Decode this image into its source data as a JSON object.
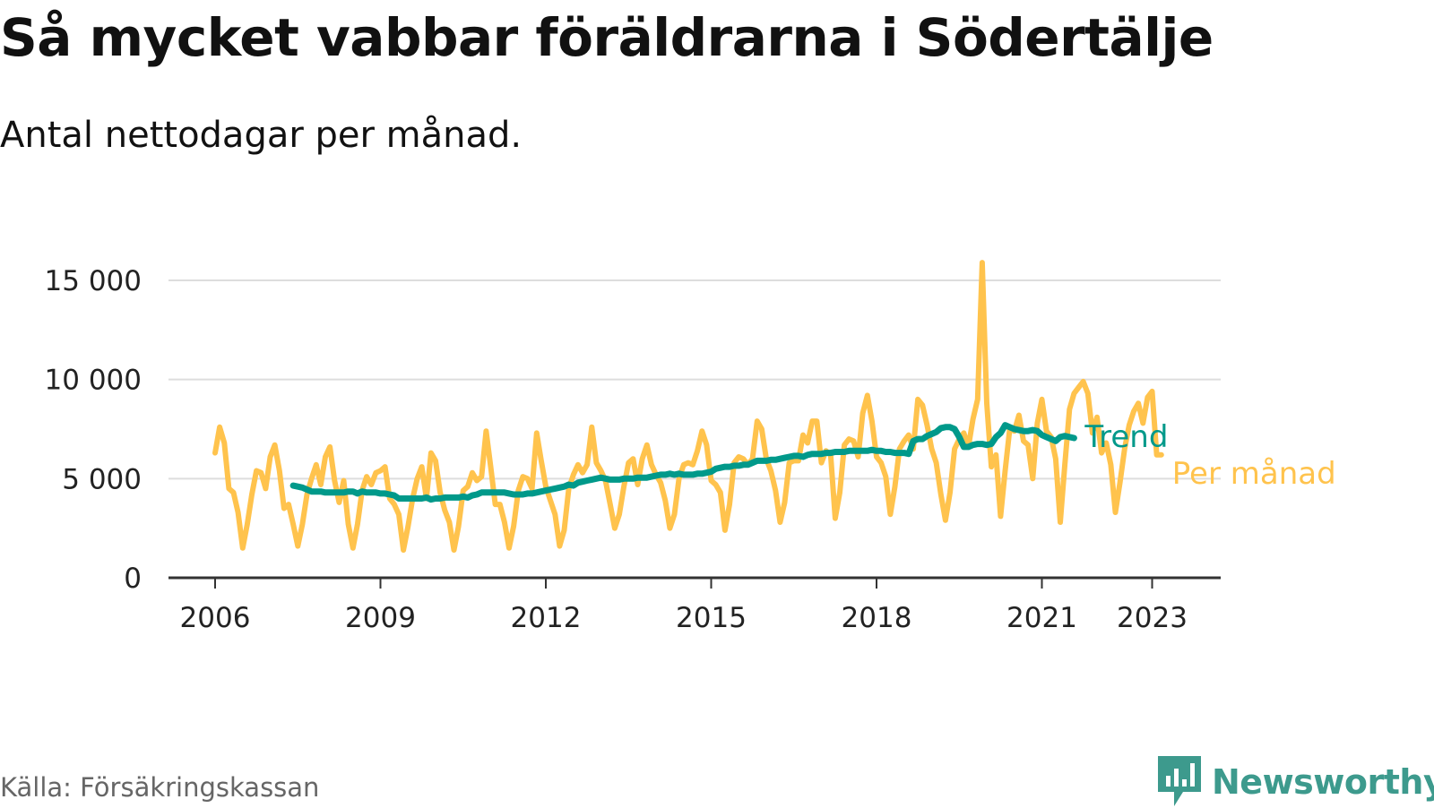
{
  "header": {
    "title": "Så mycket vabbar föräldrarna i Södertälje",
    "subtitle": "Antal nettodagar per månad."
  },
  "footer": {
    "source": "Källa: Försäkringskassan",
    "brand": "Newsworthy",
    "brand_icon": "bar-chart-chat-icon"
  },
  "colors": {
    "monthly": "#ffc34d",
    "trend": "#00998a",
    "grid": "#dddddd",
    "axis": "#333333",
    "brand": "#3d9a8d"
  },
  "chart_data": {
    "type": "line",
    "x_axis": {
      "ticks": [
        "2006",
        "2009",
        "2012",
        "2015",
        "2018",
        "2021",
        "2023"
      ],
      "range": [
        "2006-01",
        "2024-12"
      ]
    },
    "y_axis": {
      "ticks": [
        "0",
        "5 000",
        "10 000",
        "15 000"
      ],
      "range": [
        0,
        15000
      ]
    },
    "grid": true,
    "series": [
      {
        "name": "Per månad",
        "start": "2006-01",
        "frequency": "monthly",
        "values": [
          6300,
          7600,
          6800,
          4500,
          4300,
          3300,
          1500,
          2700,
          4200,
          5400,
          5300,
          4500,
          6100,
          6700,
          5400,
          3500,
          3700,
          2700,
          1600,
          2700,
          4200,
          5000,
          5700,
          4700,
          6100,
          6600,
          4900,
          3800,
          4900,
          2700,
          1500,
          2700,
          4400,
          5100,
          4700,
          5300,
          5400,
          5600,
          4000,
          3700,
          3200,
          1400,
          2600,
          4000,
          5000,
          5600,
          4000,
          6300,
          5900,
          4300,
          3400,
          2800,
          1400,
          2600,
          4400,
          4600,
          5300,
          4900,
          5100,
          7400,
          5600,
          3700,
          3700,
          2800,
          1500,
          2600,
          4400,
          5100,
          5000,
          4500,
          7300,
          5900,
          4600,
          3900,
          3200,
          1600,
          2400,
          4500,
          5200,
          5700,
          5300,
          5700,
          7600,
          5800,
          5400,
          4900,
          3700,
          2500,
          3200,
          4600,
          5800,
          6000,
          4700,
          6000,
          6700,
          5700,
          5200,
          4800,
          3900,
          2500,
          3200,
          5000,
          5700,
          5800,
          5700,
          6400,
          7400,
          6700,
          4900,
          4700,
          4300,
          2400,
          3700,
          5800,
          6100,
          6000,
          5700,
          6000,
          7900,
          7500,
          6000,
          5400,
          4400,
          2800,
          3800,
          5800,
          5900,
          5900,
          7200,
          6800,
          7900,
          7900,
          5800,
          6400,
          6200,
          3000,
          4300,
          6700,
          7000,
          6900,
          6100,
          8300,
          9200,
          7900,
          6100,
          5800,
          5100,
          3200,
          4600,
          6500,
          6900,
          7200,
          6500,
          9000,
          8700,
          7700,
          6500,
          5800,
          4200,
          2900,
          4300,
          6500,
          7000,
          7300,
          6600,
          8000,
          9000,
          15900,
          8800,
          5600,
          6200,
          3100,
          5400,
          7500,
          7400,
          8200,
          6900,
          6700,
          5000,
          7800,
          9000,
          7400,
          7100,
          6000,
          2800,
          5700,
          8500,
          9300,
          9600,
          9900,
          9300,
          7300,
          8100,
          6300,
          6800,
          5700,
          3300,
          4800,
          6500,
          7700,
          8400,
          8800,
          7800,
          9100,
          9400,
          6200,
          6200
        ]
      },
      {
        "name": "Trend",
        "start": "2007-06",
        "frequency": "monthly",
        "values": [
          4650,
          4600,
          4550,
          4450,
          4350,
          4350,
          4350,
          4300,
          4300,
          4300,
          4300,
          4300,
          4350,
          4350,
          4250,
          4350,
          4300,
          4300,
          4300,
          4250,
          4250,
          4200,
          4150,
          4000,
          4000,
          4000,
          4000,
          4000,
          4000,
          4050,
          3950,
          4000,
          4000,
          4050,
          4050,
          4050,
          4050,
          4100,
          4050,
          4150,
          4200,
          4300,
          4300,
          4300,
          4300,
          4300,
          4300,
          4250,
          4200,
          4200,
          4200,
          4250,
          4250,
          4300,
          4350,
          4400,
          4450,
          4500,
          4550,
          4600,
          4700,
          4650,
          4800,
          4850,
          4900,
          4950,
          5000,
          5050,
          5000,
          4950,
          4950,
          4950,
          5000,
          5000,
          5000,
          5050,
          5050,
          5050,
          5100,
          5150,
          5200,
          5200,
          5250,
          5200,
          5250,
          5200,
          5200,
          5200,
          5250,
          5250,
          5300,
          5350,
          5500,
          5550,
          5600,
          5600,
          5650,
          5650,
          5700,
          5700,
          5800,
          5900,
          5900,
          5900,
          5950,
          5950,
          6000,
          6050,
          6100,
          6150,
          6150,
          6100,
          6200,
          6250,
          6250,
          6250,
          6300,
          6300,
          6350,
          6350,
          6350,
          6400,
          6400,
          6400,
          6400,
          6400,
          6450,
          6400,
          6400,
          6350,
          6350,
          6300,
          6300,
          6300,
          6250,
          6900,
          7000,
          7000,
          7150,
          7250,
          7350,
          7550,
          7600,
          7600,
          7500,
          7100,
          6600,
          6600,
          6700,
          6750,
          6750,
          6700,
          6750,
          7100,
          7300,
          7700,
          7600,
          7500,
          7450,
          7400,
          7400,
          7450,
          7400,
          7200,
          7100,
          7000,
          6900,
          7100,
          7150,
          7100,
          7050
        ]
      }
    ]
  }
}
